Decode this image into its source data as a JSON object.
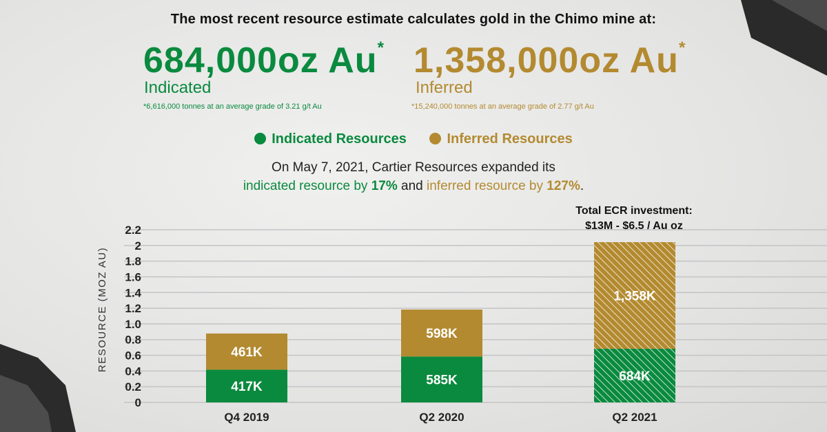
{
  "header": {
    "title": "The most recent resource estimate calculates gold in the Chimo mine at:"
  },
  "indicated": {
    "amount": "684,000oz Au",
    "asterisk": "*",
    "label": "Indicated",
    "footnote": "*6,616,000 tonnes at an average grade of 3.21 g/t Au"
  },
  "inferred": {
    "amount": "1,358,000oz Au",
    "asterisk": "*",
    "label": "Inferred",
    "footnote": "*15,240,000 tonnes at an average grade of 2.77 g/t Au"
  },
  "legend": {
    "indicated": "Indicated Resources",
    "inferred": "Inferred Resources"
  },
  "paragraph": {
    "line1": "On May 7, 2021, Cartier Resources expanded its",
    "ind_text": "indicated resource by ",
    "ind_pct": "17%",
    "and": " and ",
    "inf_text": "inferred resource by ",
    "inf_pct": "127%",
    "end": "."
  },
  "annotation": {
    "line1": "Total ECR investment:",
    "line2": "$13M - $6.5 / Au oz"
  },
  "colors": {
    "indicated": "#0a8a3e",
    "inferred": "#b38a30"
  },
  "chart_data": {
    "type": "bar",
    "stacked": true,
    "ylabel": "RESOURCE (MOZ AU)",
    "xlabel": "",
    "ylim": [
      0,
      2.2
    ],
    "yticks": [
      "0",
      "0.2",
      "0.4",
      "0.6",
      "0.8",
      "1.0",
      "1.2",
      "1.4",
      "1.6",
      "1.8",
      "2",
      "2.2"
    ],
    "ytick_values": [
      0,
      0.2,
      0.4,
      0.6,
      0.8,
      1.0,
      1.2,
      1.4,
      1.6,
      1.8,
      2.0,
      2.2
    ],
    "grid": true,
    "categories": [
      "Q4 2019",
      "Q2 2020",
      "Q2 2021"
    ],
    "series": [
      {
        "name": "Indicated Resources",
        "values": [
          0.417,
          0.585,
          0.684
        ],
        "labels": [
          "417K",
          "585K",
          "684K"
        ]
      },
      {
        "name": "Inferred Resources",
        "values": [
          0.461,
          0.598,
          1.358
        ],
        "labels": [
          "461K",
          "598K",
          "1,358K"
        ]
      }
    ],
    "hatched_categories": [
      "Q2 2021"
    ]
  }
}
